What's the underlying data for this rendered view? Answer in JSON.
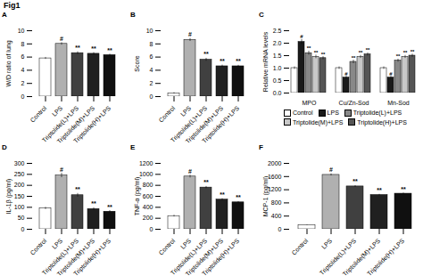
{
  "title": "Fig1",
  "chart_data": [
    {
      "type": "bar",
      "title": "A",
      "ylabel": "W/D ratio of lung",
      "categories": [
        "Control",
        "LPS",
        "Triptolide(L)+LPS",
        "Triptolide(M)+LPS",
        "Triptolide(H)+LPS"
      ],
      "values": [
        5.8,
        8.0,
        6.6,
        6.5,
        6.3
      ],
      "errors": [
        0.15,
        0.18,
        0.2,
        0.18,
        0.15
      ],
      "colors": [
        "#ffffff",
        "#b0b0b0",
        "#404040",
        "#202020",
        "#101010"
      ],
      "annotations": [
        null,
        "#",
        "**",
        "**",
        "**"
      ],
      "ylim": [
        0,
        10
      ],
      "yticks": [
        0,
        2,
        4,
        6,
        8,
        10
      ]
    },
    {
      "type": "bar",
      "title": "B",
      "ylabel": "Score",
      "categories": [
        "Control",
        "LPS",
        "Triptolide(L)+LPS",
        "Triptolide(M)+LPS",
        "Triptolide(H)+LPS"
      ],
      "values": [
        0.5,
        8.6,
        5.6,
        4.6,
        4.6
      ],
      "errors": [
        0.1,
        0.22,
        0.22,
        0.18,
        0.15
      ],
      "colors": [
        "#ffffff",
        "#b0b0b0",
        "#404040",
        "#202020",
        "#101010"
      ],
      "annotations": [
        null,
        "#",
        "**",
        "**",
        "**"
      ],
      "ylim": [
        0,
        10
      ],
      "yticks": [
        0,
        2,
        4,
        6,
        8,
        10
      ]
    },
    {
      "type": "bar",
      "title": "C",
      "ylabel": "Relative mRNA levels",
      "categories": [
        "MPO",
        "Cu/Zn-Sod",
        "Mn-Sod"
      ],
      "series": [
        {
          "name": "Control",
          "color": "#ffffff",
          "values": [
            1.0,
            1.0,
            1.0
          ],
          "errors": [
            0.05,
            0.05,
            0.05
          ],
          "annotations": [
            null,
            null,
            null
          ]
        },
        {
          "name": "LPS",
          "color": "#1a1a1a",
          "values": [
            2.05,
            0.62,
            0.62
          ],
          "errors": [
            0.1,
            0.05,
            0.05
          ],
          "annotations": [
            "#",
            "#",
            "#"
          ]
        },
        {
          "name": "Triptolide(L)+LPS",
          "color": "#888888",
          "values": [
            1.6,
            1.25,
            1.3
          ],
          "errors": [
            0.08,
            0.07,
            0.06
          ],
          "annotations": [
            "**",
            "**",
            "**"
          ]
        },
        {
          "name": "Triptolide(M)+LPS",
          "color": "#c8c8c8",
          "values": [
            1.45,
            1.45,
            1.45
          ],
          "errors": [
            0.07,
            0.06,
            0.06
          ],
          "annotations": [
            "**",
            "**",
            "**"
          ]
        },
        {
          "name": "Triptolide(H)+LPS",
          "color": "#555555",
          "values": [
            1.4,
            1.55,
            1.5
          ],
          "errors": [
            0.06,
            0.06,
            0.06
          ],
          "annotations": [
            "**",
            "**",
            "**"
          ]
        }
      ],
      "ylim": [
        0,
        2.5
      ],
      "yticks": [
        {
          "value": 0,
          "label": "0.0"
        },
        0.5,
        {
          "value": 1,
          "label": "1.0"
        },
        1.5,
        {
          "value": 2,
          "label": "2.0"
        },
        2.5
      ],
      "legend": "bottom"
    },
    {
      "type": "bar",
      "title": "D",
      "ylabel": "IL-1β (pg/ml)",
      "categories": [
        "Control",
        "LPS",
        "Triptolide(L)+LPS",
        "Triptolide(M)+LPS",
        "Triptolide(H)+LPS"
      ],
      "values": [
        95,
        245,
        155,
        92,
        80
      ],
      "errors": [
        5,
        10,
        8,
        6,
        5
      ],
      "colors": [
        "#ffffff",
        "#b0b0b0",
        "#404040",
        "#202020",
        "#101010"
      ],
      "annotations": [
        null,
        "#",
        "**",
        "**",
        "**"
      ],
      "ylim": [
        0,
        300
      ],
      "yticks": [
        0,
        50,
        100,
        150,
        200,
        250,
        300
      ]
    },
    {
      "type": "bar",
      "title": "E",
      "ylabel": "TNF-α (pg/ml)",
      "categories": [
        "Control",
        "LPS",
        "Triptolide(L)+LPS",
        "Triptolide(M)+LPS",
        "Triptolide(H)+LPS"
      ],
      "values": [
        240,
        960,
        760,
        540,
        490
      ],
      "errors": [
        15,
        25,
        20,
        18,
        15
      ],
      "colors": [
        "#ffffff",
        "#b0b0b0",
        "#404040",
        "#202020",
        "#101010"
      ],
      "annotations": [
        null,
        "#",
        "**",
        "**",
        "**"
      ],
      "ylim": [
        0,
        1200
      ],
      "yticks": [
        0,
        200,
        400,
        600,
        800,
        1000,
        1200
      ]
    },
    {
      "type": "bar",
      "title": "F",
      "ylabel": "MCP-1 (pg/ml)",
      "categories": [
        "Control",
        "LPS",
        "Triptolide(L)+LPS",
        "Triptolide(M)+LPS",
        "Triptolide(H)+LPS"
      ],
      "values": [
        120,
        1650,
        1300,
        1040,
        1080
      ],
      "errors": [
        10,
        30,
        25,
        20,
        20
      ],
      "colors": [
        "#ffffff",
        "#b0b0b0",
        "#404040",
        "#202020",
        "#101010"
      ],
      "annotations": [
        null,
        "#",
        "**",
        "**",
        "**"
      ],
      "ylim": [
        0,
        2000
      ],
      "yticks": [
        0,
        400,
        800,
        1200,
        1600,
        2000
      ]
    }
  ]
}
